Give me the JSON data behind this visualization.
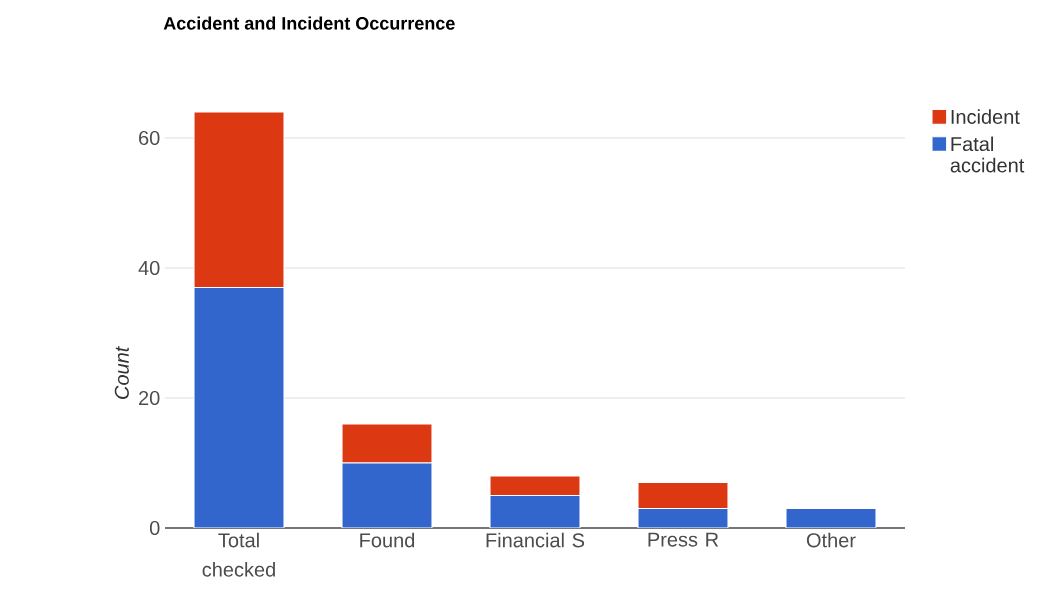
{
  "chart_data": {
    "type": "bar",
    "stacked": true,
    "title": "Accident and Incident Occurrence",
    "ylabel": "Count",
    "categories": [
      "Total checked",
      "Found",
      "Financial S",
      "Press R",
      "Other"
    ],
    "series": [
      {
        "name": "Fatal accident",
        "color": "#3366cc",
        "values": [
          37,
          10,
          5,
          3,
          3
        ]
      },
      {
        "name": "Incident",
        "color": "#dc3912",
        "values": [
          27,
          6,
          3,
          4,
          0
        ]
      }
    ],
    "ylim": [
      0,
      64
    ],
    "yticks": [
      0,
      20,
      40,
      60
    ],
    "grid": "y",
    "legend": "top right"
  }
}
